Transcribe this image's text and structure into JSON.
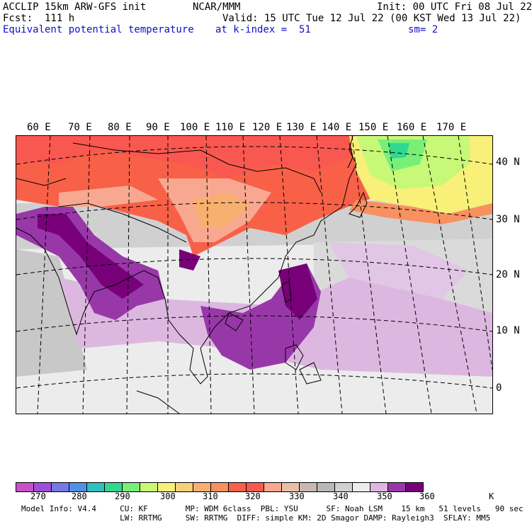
{
  "header": {
    "model": "ACCLIP 15km ARW-GFS init",
    "org": "NCAR/MMM",
    "init": "Init: 00 UTC Fri 08 Jul 22",
    "fcst": "Fcst:  111 h",
    "valid": "Valid: 15 UTC Tue 12 Jul 22 (00 KST Wed 13 Jul 22)",
    "field": "Equivalent potential temperature",
    "level": "at k-index =  51",
    "smooth": "sm= 2"
  },
  "lon_labels": [
    "60 E",
    "70 E",
    "80 E",
    "90 E",
    "100 E",
    "110 E",
    "120 E",
    "130 E",
    "140 E",
    "150 E",
    "160 E",
    "170 E"
  ],
  "lat_labels": [
    "40 N",
    "30 N",
    "20 N",
    "10 N",
    "0"
  ],
  "colorbar": {
    "colors": [
      "#c850c8",
      "#a050d8",
      "#7878e8",
      "#5090e8",
      "#30c0c0",
      "#30d890",
      "#78f078",
      "#c8f878",
      "#f8f078",
      "#f8d078",
      "#f8b070",
      "#f89060",
      "#f86048",
      "#f85850",
      "#f8a890",
      "#e8c0a8",
      "#c8b8b0",
      "#b8b8b8",
      "#d0d0d0",
      "#ececec",
      "#dcb8e0",
      "#9838a8",
      "#780078"
    ],
    "labels": [
      "270",
      "280",
      "290",
      "300",
      "310",
      "320",
      "330",
      "340",
      "350",
      "360"
    ],
    "unit": "K"
  },
  "footer": {
    "line1": "Model Info: V4.4     CU: KF        MP: WDM 6class  PBL: YSU      SF: Noah LSM    15 km   51 levels   90 sec",
    "line2": "                     LW: RRTMG     SW: RRTMG  DIFF: simple KM: 2D Smagor DAMP: Rayleigh3  SFLAY: MM5"
  }
}
